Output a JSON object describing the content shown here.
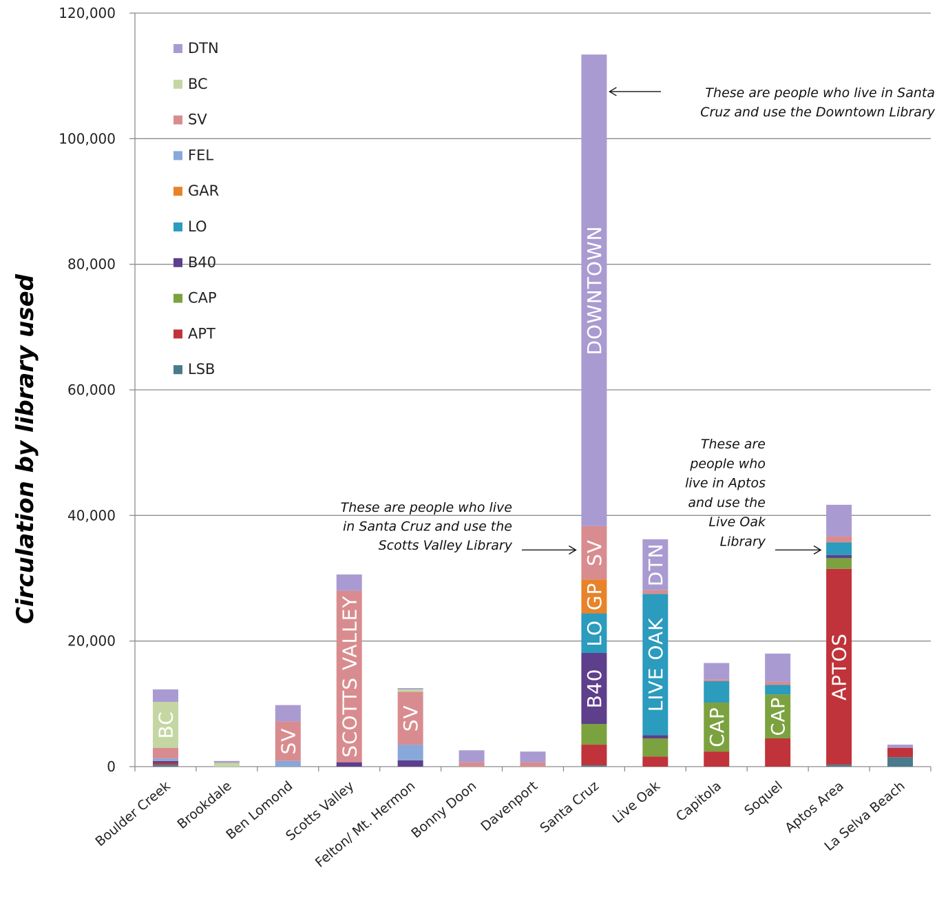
{
  "chart_data": {
    "type": "bar",
    "stacked": true,
    "title": "",
    "xlabel": "",
    "ylabel": "Circulation by library used",
    "ylim": [
      0,
      120000
    ],
    "yticks": [
      0,
      20000,
      40000,
      60000,
      80000,
      100000,
      120000
    ],
    "ytick_labels": [
      "0",
      "20,000",
      "40,000",
      "60,000",
      "80,000",
      "100,000",
      "120,000"
    ],
    "grid": "horizontal",
    "legend_position": "top-left",
    "categories": [
      "Boulder Creek",
      "Brookdale",
      "Ben Lomond",
      "Scotts Valley",
      "Felton/ Mt. Hermon",
      "Bonny Doon",
      "Davenport",
      "Santa Cruz",
      "Live Oak",
      "Capitola",
      "Soquel",
      "Aptos Area",
      "La Selva Beach"
    ],
    "series": [
      {
        "name": "LSB",
        "color": "#4a7a8c",
        "values": [
          300,
          0,
          0,
          0,
          0,
          0,
          0,
          200,
          0,
          0,
          0,
          300,
          1500
        ]
      },
      {
        "name": "APT",
        "color": "#c0333a",
        "values": [
          300,
          0,
          0,
          0,
          0,
          0,
          0,
          3300,
          1600,
          2400,
          4500,
          31200,
          1500
        ]
      },
      {
        "name": "CAP",
        "color": "#7ba23f",
        "values": [
          0,
          0,
          0,
          0,
          0,
          0,
          0,
          3300,
          2900,
          7800,
          7000,
          1700,
          0
        ]
      },
      {
        "name": "B40",
        "color": "#5e3f8c",
        "values": [
          300,
          0,
          0,
          700,
          1000,
          0,
          0,
          11300,
          500,
          0,
          0,
          500,
          0
        ]
      },
      {
        "name": "LO",
        "color": "#2b9bbe",
        "values": [
          0,
          0,
          0,
          0,
          0,
          0,
          0,
          6300,
          22500,
          3400,
          1500,
          2000,
          0
        ]
      },
      {
        "name": "GAR",
        "color": "#e8832a",
        "values": [
          0,
          0,
          0,
          0,
          0,
          0,
          0,
          5400,
          0,
          0,
          0,
          0,
          0
        ]
      },
      {
        "name": "FEL",
        "color": "#87a8d8",
        "values": [
          400,
          0,
          900,
          0,
          2500,
          0,
          0,
          0,
          0,
          0,
          0,
          0,
          0
        ]
      },
      {
        "name": "SV",
        "color": "#d98c8f",
        "values": [
          1700,
          0,
          6300,
          27300,
          8400,
          700,
          700,
          8500,
          600,
          300,
          500,
          1000,
          0
        ]
      },
      {
        "name": "BC",
        "color": "#c4d7a2",
        "values": [
          7300,
          600,
          0,
          0,
          400,
          0,
          0,
          0,
          0,
          0,
          0,
          0,
          0
        ]
      },
      {
        "name": "DTN",
        "color": "#a99bd1",
        "values": [
          2000,
          300,
          2600,
          2600,
          200,
          1900,
          1700,
          75100,
          8100,
          2600,
          4500,
          5000,
          500
        ]
      }
    ],
    "segment_labels": [
      {
        "category": "Boulder Creek",
        "series": "BC",
        "text": "BC"
      },
      {
        "category": "Ben Lomond",
        "series": "SV",
        "text": "SV"
      },
      {
        "category": "Scotts Valley",
        "series": "SV",
        "text": "SCOTTS VALLEY"
      },
      {
        "category": "Felton/ Mt. Hermon",
        "series": "SV",
        "text": "SV"
      },
      {
        "category": "Santa Cruz",
        "series": "DTN",
        "text": "DOWNTOWN"
      },
      {
        "category": "Santa Cruz",
        "series": "SV",
        "text": "SV"
      },
      {
        "category": "Santa Cruz",
        "series": "GAR",
        "text": "GP"
      },
      {
        "category": "Santa Cruz",
        "series": "LO",
        "text": "LO"
      },
      {
        "category": "Santa Cruz",
        "series": "B40",
        "text": "B40"
      },
      {
        "category": "Live Oak",
        "series": "DTN",
        "text": "DTN"
      },
      {
        "category": "Live Oak",
        "series": "LO",
        "text": "LIVE OAK"
      },
      {
        "category": "Capitola",
        "series": "CAP",
        "text": "CAP"
      },
      {
        "category": "Soquel",
        "series": "CAP",
        "text": "CAP"
      },
      {
        "category": "Aptos Area",
        "series": "APT",
        "text": "APTOS"
      }
    ],
    "annotations": [
      {
        "lines": [
          "These are people who live in Santa",
          "Cruz and use the Downtown Library"
        ],
        "target_category": "Santa Cruz",
        "target_value": 107500
      },
      {
        "lines": [
          "These are people who live",
          "in Santa Cruz and use the",
          "Scotts Valley Library"
        ],
        "target_category": "Santa Cruz",
        "target_value": 34500
      },
      {
        "lines": [
          "These are",
          "people who",
          "live in Aptos",
          "and use the",
          "Live Oak",
          "Library"
        ],
        "target_category": "Aptos Area",
        "target_value": 34500
      }
    ]
  }
}
